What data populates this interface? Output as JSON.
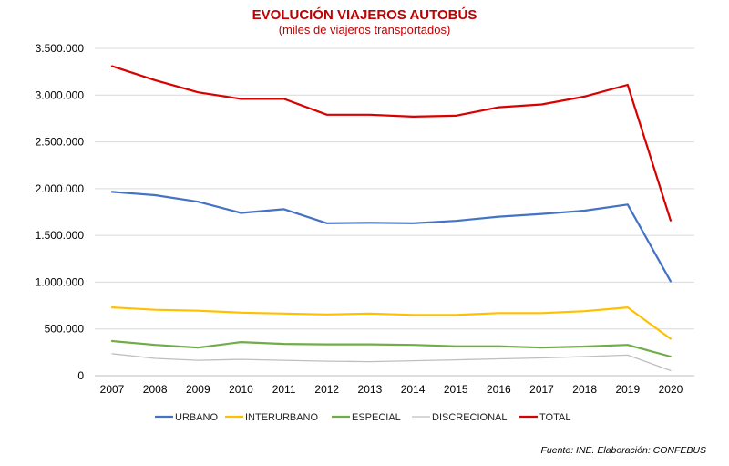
{
  "chart_data": {
    "type": "line",
    "title": "EVOLUCIÓN VIAJEROS AUTOBÚS",
    "subtitle": "(miles de viajeros transportados)",
    "xlabel": "",
    "ylabel": "",
    "categories": [
      "2007",
      "2008",
      "2009",
      "2010",
      "2011",
      "2012",
      "2013",
      "2014",
      "2015",
      "2016",
      "2017",
      "2018",
      "2019",
      "2020"
    ],
    "ylim": [
      0,
      3500000
    ],
    "yticks": [
      0,
      500000,
      1000000,
      1500000,
      2000000,
      2500000,
      3000000,
      3500000
    ],
    "ytick_labels": [
      "0",
      "500.000",
      "1.000.000",
      "1.500.000",
      "2.000.000",
      "2.500.000",
      "3.000.000",
      "3.500.000"
    ],
    "grid": true,
    "legend_position": "bottom",
    "series": [
      {
        "name": "URBANO",
        "color": "#4472c4",
        "values": [
          1965000,
          1930000,
          1860000,
          1740000,
          1780000,
          1630000,
          1635000,
          1630000,
          1655000,
          1700000,
          1730000,
          1765000,
          1830000,
          1010000
        ]
      },
      {
        "name": "INTERURBANO",
        "color": "#ffc000",
        "values": [
          730000,
          705000,
          695000,
          675000,
          665000,
          655000,
          665000,
          650000,
          650000,
          670000,
          670000,
          690000,
          730000,
          395000
        ]
      },
      {
        "name": "ESPECIAL",
        "color": "#70ad47",
        "values": [
          370000,
          330000,
          300000,
          360000,
          340000,
          335000,
          335000,
          330000,
          315000,
          315000,
          300000,
          312000,
          330000,
          205000
        ]
      },
      {
        "name": "DISCRECIONAL",
        "color": "#bfbfbf",
        "values": [
          235000,
          185000,
          165000,
          175000,
          165000,
          155000,
          150000,
          160000,
          170000,
          180000,
          190000,
          205000,
          220000,
          55000
        ]
      },
      {
        "name": "TOTAL",
        "color": "#d90000",
        "values": [
          3310000,
          3160000,
          3030000,
          2960000,
          2960000,
          2790000,
          2790000,
          2770000,
          2780000,
          2870000,
          2900000,
          2985000,
          3110000,
          1660000
        ]
      }
    ]
  },
  "source": "Fuente: INE. Elaboración: CONFEBUS"
}
